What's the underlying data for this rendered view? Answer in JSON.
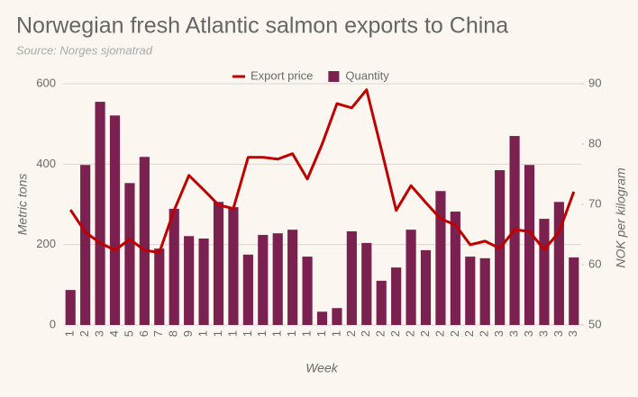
{
  "chart_data": {
    "type": "bar",
    "title": "Norwegian fresh Atlantic salmon exports to China",
    "subtitle": "Source: Norges sjomatrad",
    "x_label": "Week",
    "y_label": "Metric tons",
    "y2_label": "NOK per kilogram",
    "categories": [
      "1",
      "2",
      "3",
      "4",
      "5",
      "6",
      "7",
      "8",
      "9",
      "1",
      "1",
      "1",
      "1",
      "1",
      "1",
      "1",
      "1",
      "1",
      "1",
      "2",
      "2",
      "2",
      "2",
      "2",
      "2",
      "2",
      "2",
      "2",
      "2",
      "3",
      "3",
      "3",
      "3",
      "3",
      "3"
    ],
    "series": [
      {
        "name": "Export price",
        "type": "line",
        "axis": "y2",
        "color": "#c00000",
        "values": [
          69.1,
          65.4,
          63.6,
          62.4,
          64.2,
          62.4,
          62,
          69,
          74.8,
          72.4,
          69.9,
          69.3,
          77.8,
          77.8,
          77.5,
          78.4,
          74.2,
          80,
          86.7,
          86,
          89,
          79.1,
          69,
          73.1,
          70.3,
          67.6,
          66.6,
          63.3,
          63.9,
          62.7,
          65.8,
          65.5,
          62.5,
          65.4,
          72.1
        ]
      },
      {
        "name": "Quantity",
        "type": "bar",
        "color": "#7a2150",
        "values": [
          87,
          398,
          555,
          521,
          353,
          418,
          190,
          289,
          221,
          215,
          306,
          293,
          175,
          224,
          228,
          237,
          170,
          33,
          42,
          233,
          204,
          110,
          143,
          237,
          186,
          333,
          282,
          170,
          166,
          385,
          470,
          398,
          264,
          306,
          168
        ]
      }
    ],
    "ylim": [
      0,
      600
    ],
    "yticks": [
      0,
      200,
      400,
      600
    ],
    "y2lim": [
      50,
      90
    ],
    "y2ticks": [
      50,
      60,
      70,
      80,
      90
    ],
    "grid": true,
    "legend": "top"
  }
}
